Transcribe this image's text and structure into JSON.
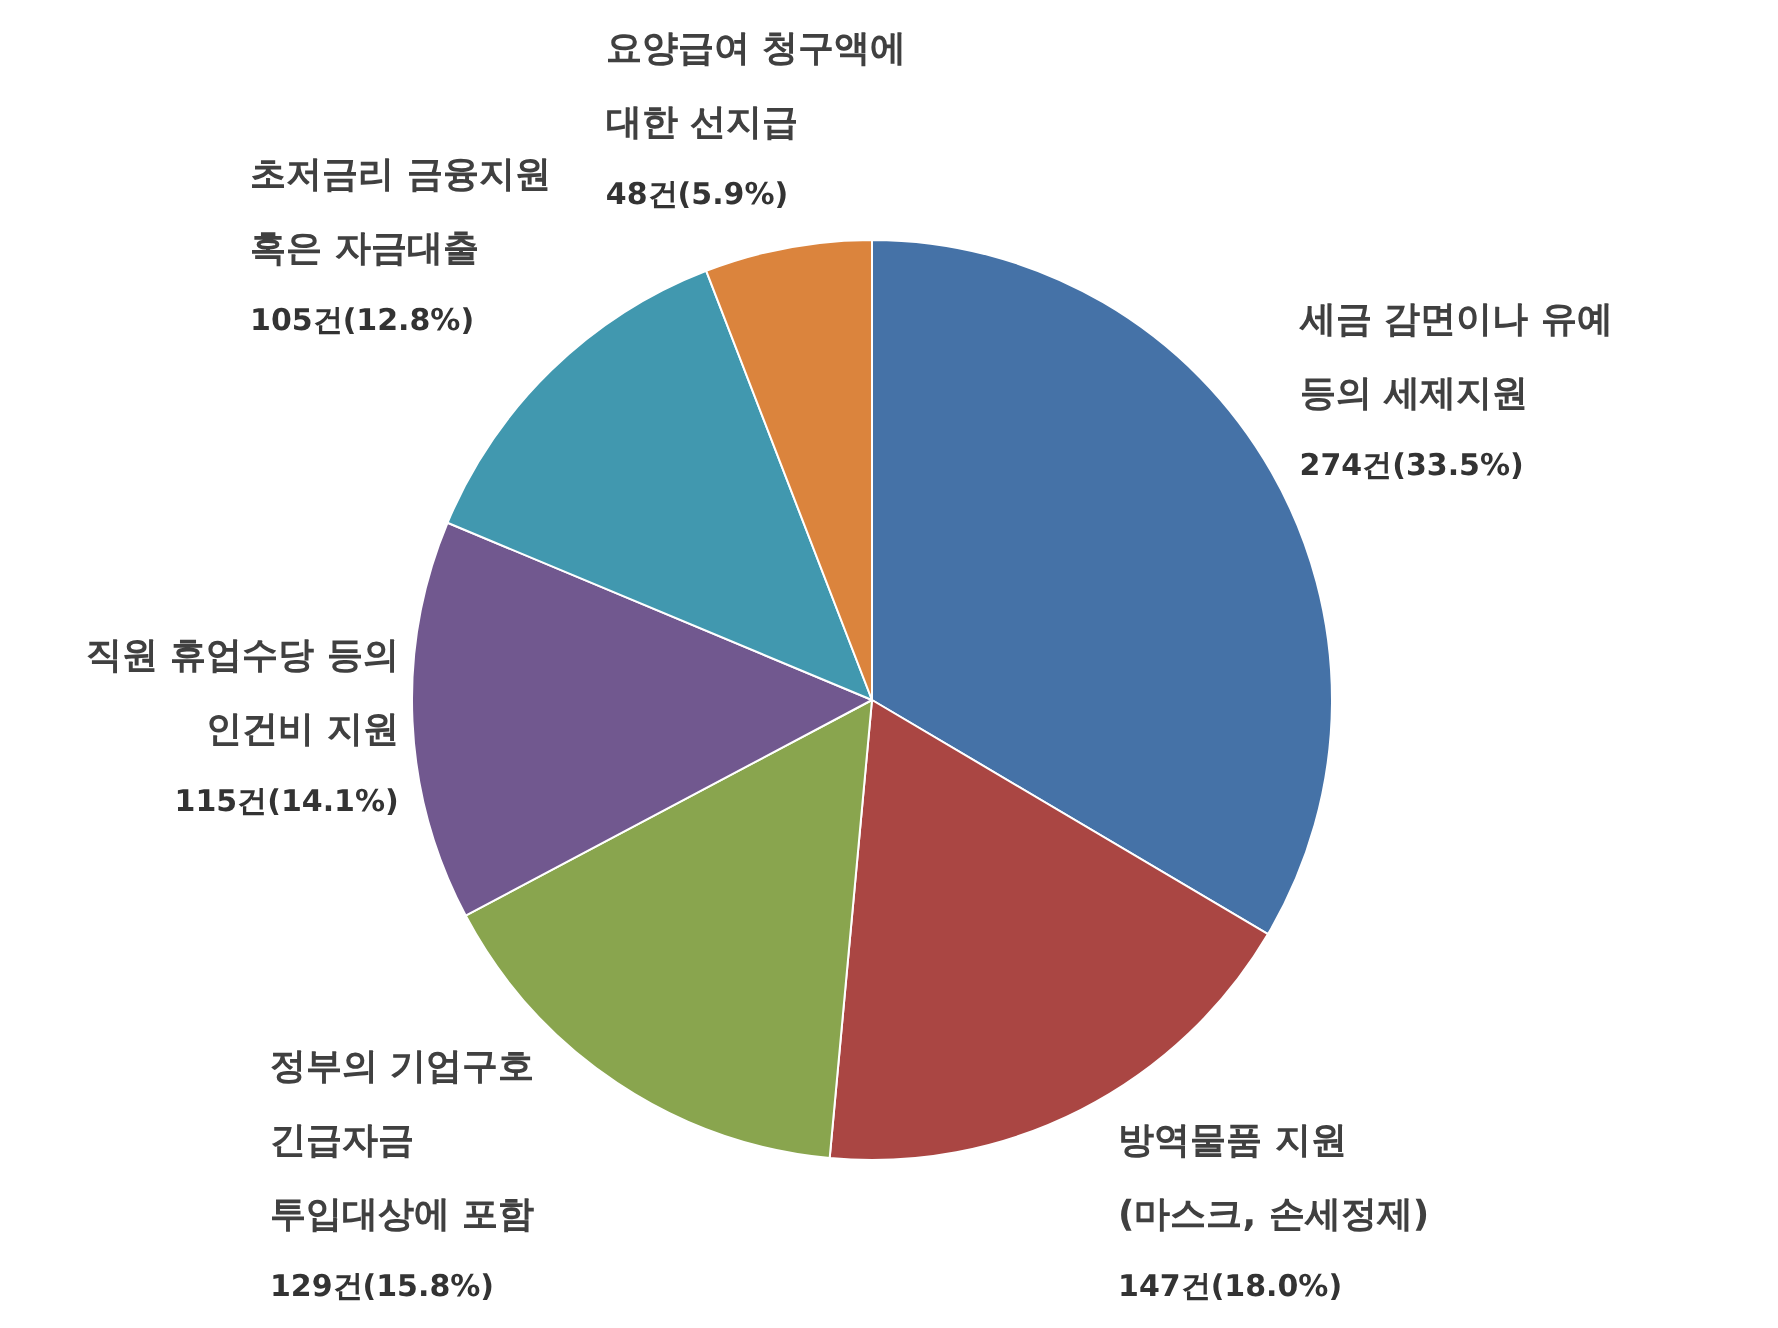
{
  "chart_data": {
    "type": "pie",
    "categories": [
      "세금 감면이나 유예\n등의 세제지원",
      "방역물품 지원\n(마스크, 손세정제)",
      "정부의 기업구호\n긴급자금\n투입대상에 포함",
      "직원 휴업수당 등의\n인건비 지원",
      "초저금리 금융지원\n혹은 자금대출",
      "요양급여 청구액에\n대한 선지급"
    ],
    "values": [
      274,
      147,
      129,
      115,
      105,
      48
    ],
    "colors": [
      "#4572a7",
      "#aa4643",
      "#89a54e",
      "#71588f",
      "#4198af",
      "#db843d"
    ],
    "value_labels": [
      "274건(33.5%)",
      "147건(18.0%)",
      "129건(15.8%)",
      "115건(14.1%)",
      "105건(12.8%)",
      "48건(5.9%)"
    ]
  }
}
